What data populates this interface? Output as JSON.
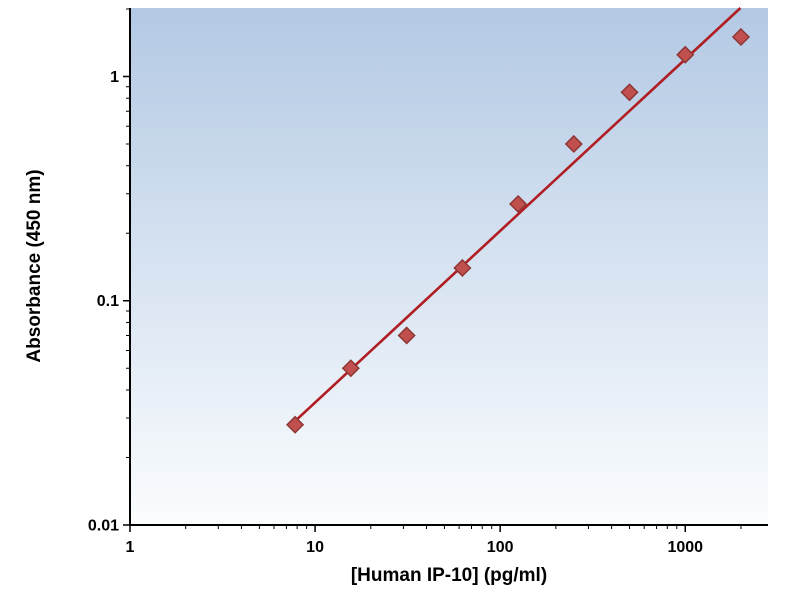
{
  "chart_data": {
    "type": "scatter",
    "title": "",
    "xlabel": "[Human IP-10] (pg/ml)",
    "ylabel": "Absorbance (450 nm)",
    "x_scale": "log",
    "y_scale": "log",
    "xlim": [
      1,
      2800
    ],
    "ylim": [
      0.01,
      2.02
    ],
    "x_tick_values": [
      1,
      10,
      100,
      1000
    ],
    "x_tick_labels": [
      "1",
      "10",
      "100",
      "1000"
    ],
    "y_tick_values": [
      0.01,
      0.1,
      1
    ],
    "y_tick_labels": [
      "0.01",
      "0.1",
      "1"
    ],
    "grid": false,
    "legend": "none",
    "series": [
      {
        "x": [
          7.8,
          15.6,
          31.25,
          62.5,
          125,
          250,
          500,
          1000,
          2000
        ],
        "y": [
          0.028,
          0.05,
          0.07,
          0.14,
          0.27,
          0.5,
          0.85,
          1.25,
          1.5
        ],
        "marker": "diamond",
        "marker_fill": "#C0504D",
        "marker_stroke": "#8E3634",
        "trendline": true,
        "trendline_color": "#B01E23"
      }
    ],
    "plot_background": {
      "top": "#B3C9E4",
      "bottom": "#FBFDFE"
    },
    "axis_color": "#000000",
    "tick_label_color": "#000000"
  }
}
